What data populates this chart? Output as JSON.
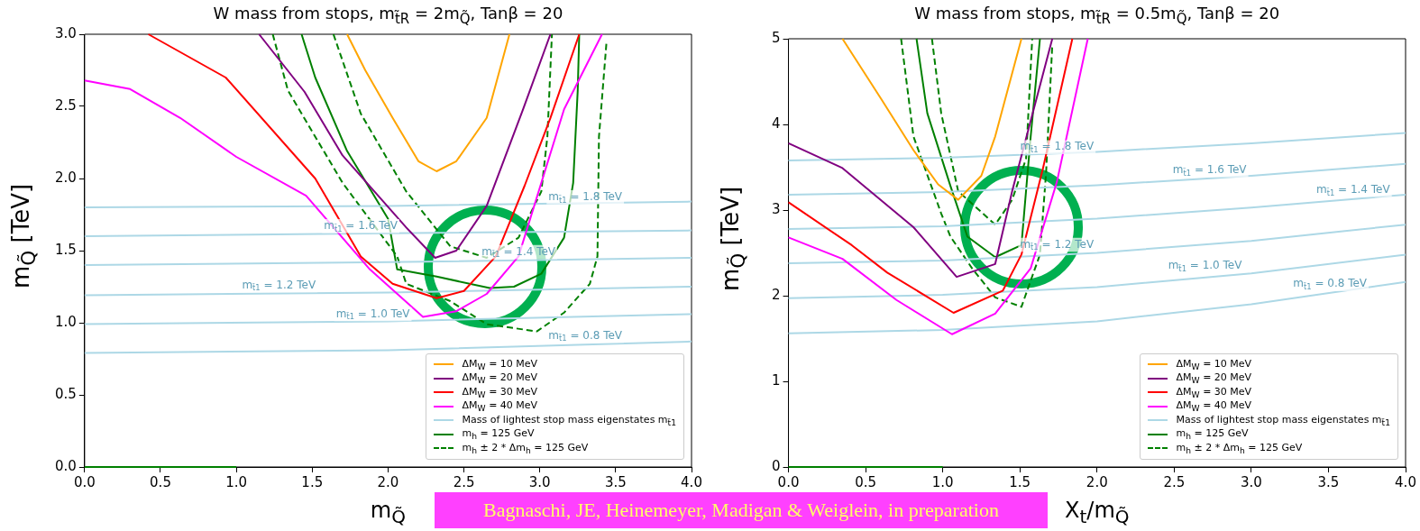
{
  "chart_data": [
    {
      "type": "line",
      "title": "W mass from stops, m$_{t̃R}$ = 2m$_{Q̃}$, Tanβ = 20",
      "xlabel": "m$_{Q̃}$",
      "ylabel": "m$_{Q̃}$ [TeV]",
      "xlim": [
        0,
        4
      ],
      "ylim": [
        0,
        3
      ],
      "xticks": [
        {
          "value": 0,
          "label": "0.0"
        },
        {
          "value": 0.5,
          "label": "0.5"
        },
        {
          "value": 1,
          "label": "1.0"
        },
        {
          "value": 1.5,
          "label": "1.5"
        },
        {
          "value": 2,
          "label": "2.0"
        },
        {
          "value": 2.5,
          "label": "2.5"
        },
        {
          "value": 3,
          "label": "3.0"
        },
        {
          "value": 3.5,
          "label": "3.5"
        },
        {
          "value": 4,
          "label": "4.0"
        }
      ],
      "yticks": [
        {
          "value": 0,
          "label": "0.0"
        },
        {
          "value": 0.5,
          "label": "0.5"
        },
        {
          "value": 1,
          "label": "1.0"
        },
        {
          "value": 1.5,
          "label": "1.5"
        },
        {
          "value": 2,
          "label": "2.0"
        },
        {
          "value": 2.5,
          "label": "2.5"
        },
        {
          "value": 3,
          "label": "3.0"
        }
      ],
      "grid": false,
      "legend": "bottom right",
      "series": [
        {
          "name": "ΔM$_{W}$ = 10 MeV",
          "color": "#ffa500",
          "x": [
            1.73,
            1.85,
            2.03,
            2.2,
            2.32,
            2.45,
            2.65,
            2.8
          ],
          "values": [
            3.0,
            2.75,
            2.42,
            2.12,
            2.05,
            2.12,
            2.42,
            3.0
          ]
        },
        {
          "name": "ΔM$_{W}$ = 20 MeV",
          "color": "#800080",
          "x": [
            1.15,
            1.45,
            1.7,
            2.12,
            2.31,
            2.45,
            2.65,
            2.89,
            3.07
          ],
          "values": [
            3.0,
            2.6,
            2.16,
            1.66,
            1.45,
            1.5,
            1.81,
            2.48,
            3.0
          ]
        },
        {
          "name": "ΔM$_{W}$ = 30 MeV",
          "color": "#ff0000",
          "x": [
            0.42,
            0.93,
            1.52,
            1.82,
            2.03,
            2.32,
            2.5,
            2.71,
            2.9,
            3.07,
            3.26
          ],
          "values": [
            3.0,
            2.7,
            2.0,
            1.46,
            1.27,
            1.17,
            1.22,
            1.46,
            1.95,
            2.42,
            3.0
          ]
        },
        {
          "name": "ΔM$_{W}$ = 40 MeV",
          "color": "#ff00ff",
          "x": [
            0,
            0.3,
            0.63,
            1.0,
            1.46,
            1.88,
            2.23,
            2.45,
            2.65,
            2.86,
            3.16,
            3.41
          ],
          "values": [
            2.68,
            2.62,
            2.42,
            2.15,
            1.88,
            1.37,
            1.04,
            1.08,
            1.2,
            1.46,
            2.48,
            3.0
          ]
        },
        {
          "name": "Mass of lightest stop mass eigenstates m$_{t̃1}$",
          "color": "#add8e6",
          "x": [
            0,
            2,
            4
          ],
          "values": [
            1.8,
            1.81,
            1.84
          ]
        },
        {
          "color": "#add8e6",
          "x": [
            0,
            2,
            4
          ],
          "values": [
            1.6,
            1.62,
            1.64
          ]
        },
        {
          "color": "#add8e6",
          "x": [
            0,
            2,
            4
          ],
          "values": [
            1.4,
            1.42,
            1.45
          ]
        },
        {
          "color": "#add8e6",
          "x": [
            0,
            2,
            4
          ],
          "values": [
            1.19,
            1.21,
            1.25
          ]
        },
        {
          "color": "#add8e6",
          "x": [
            0,
            2,
            4
          ],
          "values": [
            0.99,
            1.01,
            1.06
          ]
        },
        {
          "color": "#add8e6",
          "x": [
            0,
            2,
            4
          ],
          "values": [
            0.79,
            0.81,
            0.87
          ]
        },
        {
          "name": "m$_{h}$ = 125 GeV",
          "color": "#008000",
          "x": [
            1.43,
            1.52,
            1.73,
            2.0,
            2.06,
            2.32,
            2.67,
            2.83,
            3.01,
            3.16,
            3.22,
            3.25,
            3.26
          ],
          "values": [
            3.0,
            2.7,
            2.19,
            1.72,
            1.37,
            1.32,
            1.24,
            1.25,
            1.34,
            1.59,
            1.97,
            2.61,
            3.0
          ]
        },
        {
          "color": "#008000",
          "x": [
            0,
            1
          ],
          "values": [
            0,
            0
          ]
        },
        {
          "name": "m$_{h}$ ± 2 * Δm$_{h}$ = 125 GeV",
          "color": "#008000",
          "line_style": "dashed",
          "x": [
            1.24,
            1.34,
            1.7,
            2.06,
            2.12,
            2.41,
            2.65,
            2.98,
            3.16,
            3.33,
            3.38,
            3.39,
            3.44
          ],
          "values": [
            3.0,
            2.61,
            1.97,
            1.46,
            1.27,
            1.15,
            0.99,
            0.94,
            1.07,
            1.27,
            1.46,
            2.29,
            2.95
          ]
        },
        {
          "color": "#008000",
          "line_style": "dashed",
          "x": [
            1.64,
            1.82,
            2.12,
            2.41,
            2.65,
            2.86,
            3.01,
            3.05,
            3.08
          ],
          "values": [
            3.0,
            2.45,
            1.91,
            1.53,
            1.45,
            1.59,
            1.91,
            2.29,
            3.0
          ]
        }
      ],
      "annotations": [
        {
          "text": "m$_{t̃1}$ = 1.8 TeV",
          "x": 3.3,
          "y": 1.82
        },
        {
          "text": "m$_{t̃1}$ = 1.6 TeV",
          "x": 1.82,
          "y": 1.62
        },
        {
          "text": "m$_{t̃1}$ = 1.4 TeV",
          "x": 2.86,
          "y": 1.44
        },
        {
          "text": "m$_{t̃1}$ = 1.2 TeV",
          "x": 1.28,
          "y": 1.21
        },
        {
          "text": "m$_{t̃1}$ = 1.0 TeV",
          "x": 1.9,
          "y": 1.01
        },
        {
          "text": "m$_{t̃1}$ = 0.8 TeV",
          "x": 3.3,
          "y": 0.86
        },
        "Bagnaschi, JE, Heinemeyer, Madigan & Weiglein, in preparation"
      ]
    },
    {
      "type": "line",
      "title": "W mass from stops, m$_{t̃R}$ = 0.5m$_{Q̃}$, Tanβ = 20",
      "xlabel": "X$_{t}$/m$_{Q̃}$",
      "ylabel": "m$_{Q̃}$ [TeV]",
      "xlim": [
        0,
        4
      ],
      "ylim": [
        0,
        5
      ],
      "xticks": [
        {
          "value": 0,
          "label": "0.0"
        },
        {
          "value": 0.5,
          "label": "0.5"
        },
        {
          "value": 1,
          "label": "1.0"
        },
        {
          "value": 1.5,
          "label": "1.5"
        },
        {
          "value": 2,
          "label": "2.0"
        },
        {
          "value": 2.5,
          "label": "2.5"
        },
        {
          "value": 3,
          "label": "3.0"
        },
        {
          "value": 3.5,
          "label": "3.5"
        },
        {
          "value": 4,
          "label": "4.0"
        }
      ],
      "yticks": [
        0,
        1,
        2,
        3,
        4,
        5
      ],
      "grid": false,
      "legend": "bottom right",
      "series": [
        {
          "name": "ΔM$_{W}$ = 10 MeV",
          "color": "#ffa500",
          "x": [
            0.35,
            0.6,
            0.81,
            0.97,
            1.1,
            1.25,
            1.34,
            1.51
          ],
          "values": [
            5,
            4.3,
            3.7,
            3.3,
            3.12,
            3.4,
            3.86,
            5
          ]
        },
        {
          "name": "ΔM$_{W}$ = 20 MeV",
          "color": "#800080",
          "x": [
            0,
            0.35,
            0.81,
            1.09,
            1.34,
            1.45,
            1.71
          ],
          "values": [
            3.78,
            3.49,
            2.8,
            2.22,
            2.37,
            3.22,
            5
          ]
        },
        {
          "name": "ΔM$_{W}$ = 30 MeV",
          "color": "#ff0000",
          "x": [
            0,
            0.41,
            0.64,
            1.07,
            1.39,
            1.51,
            1.65,
            1.84
          ],
          "values": [
            3.09,
            2.59,
            2.27,
            1.8,
            2.06,
            2.48,
            3.49,
            5
          ]
        },
        {
          "name": "ΔM$_{W}$ = 40 MeV",
          "color": "#ff00ff",
          "x": [
            0,
            0.35,
            0.7,
            1.06,
            1.34,
            1.57,
            1.74,
            1.94
          ],
          "values": [
            2.68,
            2.43,
            1.95,
            1.55,
            1.79,
            2.32,
            3.33,
            5
          ]
        },
        {
          "name": "Mass of lightest stop mass eigenstates m$_{t̃1}$",
          "color": "#add8e6",
          "x": [
            0,
            1,
            2,
            3,
            4
          ],
          "values": [
            3.58,
            3.61,
            3.68,
            3.78,
            3.9
          ]
        },
        {
          "color": "#add8e6",
          "x": [
            0,
            1,
            2,
            3,
            4
          ],
          "values": [
            3.18,
            3.21,
            3.29,
            3.4,
            3.54
          ]
        },
        {
          "color": "#add8e6",
          "x": [
            0,
            1,
            2,
            3,
            4
          ],
          "values": [
            2.78,
            2.81,
            2.9,
            3.03,
            3.18
          ]
        },
        {
          "color": "#add8e6",
          "x": [
            0,
            1,
            2,
            3,
            4
          ],
          "values": [
            2.38,
            2.41,
            2.5,
            2.64,
            2.83
          ]
        },
        {
          "color": "#add8e6",
          "x": [
            0,
            1,
            2,
            3,
            4
          ],
          "values": [
            1.97,
            2.01,
            2.1,
            2.26,
            2.48
          ]
        },
        {
          "color": "#add8e6",
          "x": [
            0,
            1,
            2,
            3,
            4
          ],
          "values": [
            1.56,
            1.6,
            1.7,
            1.9,
            2.16
          ]
        },
        {
          "name": "m$_{h}$ = 125 GeV",
          "color": "#008000",
          "x": [
            0.83,
            0.9,
            1.05,
            1.16,
            1.34,
            1.51,
            1.57,
            1.63
          ],
          "values": [
            5,
            4.13,
            3.28,
            2.69,
            2.45,
            2.59,
            3.86,
            5
          ]
        },
        {
          "color": "#008000",
          "x": [
            0,
            1
          ],
          "values": [
            0,
            0
          ]
        },
        {
          "name": "m$_{h}$ ± 2 * Δm$_{h}$ = 125 GeV",
          "color": "#008000",
          "line_style": "dashed",
          "x": [
            0.73,
            0.81,
            0.99,
            1.05,
            1.19,
            1.34,
            1.51,
            1.63,
            1.67,
            1.71
          ],
          "values": [
            5,
            3.86,
            2.96,
            2.69,
            2.32,
            1.98,
            1.87,
            2.48,
            3.44,
            4.93
          ]
        },
        {
          "color": "#008000",
          "line_style": "dashed",
          "x": [
            0.93,
            0.99,
            1.1,
            1.34,
            1.45,
            1.54,
            1.57,
            1.58
          ],
          "values": [
            5,
            4.13,
            3.22,
            2.83,
            3.12,
            3.6,
            4.66,
            5
          ]
        }
      ],
      "annotations": [
        {
          "text": "m$_{t̃1}$ = 1.8 TeV",
          "x": 1.74,
          "y": 3.65
        },
        {
          "text": "m$_{t̃1}$ = 1.6 TeV",
          "x": 2.73,
          "y": 3.38
        },
        {
          "text": "m$_{t̃1}$ = 1.4 TeV",
          "x": 3.66,
          "y": 3.15
        },
        {
          "text": "m$_{t̃1}$ = 1.2 TeV",
          "x": 1.74,
          "y": 2.51
        },
        {
          "text": "m$_{t̃1}$ = 1.0 TeV",
          "x": 2.7,
          "y": 2.26
        },
        {
          "text": "m$_{t̃1}$ = 0.8 TeV",
          "x": 3.51,
          "y": 2.05
        }
      ]
    }
  ]
}
